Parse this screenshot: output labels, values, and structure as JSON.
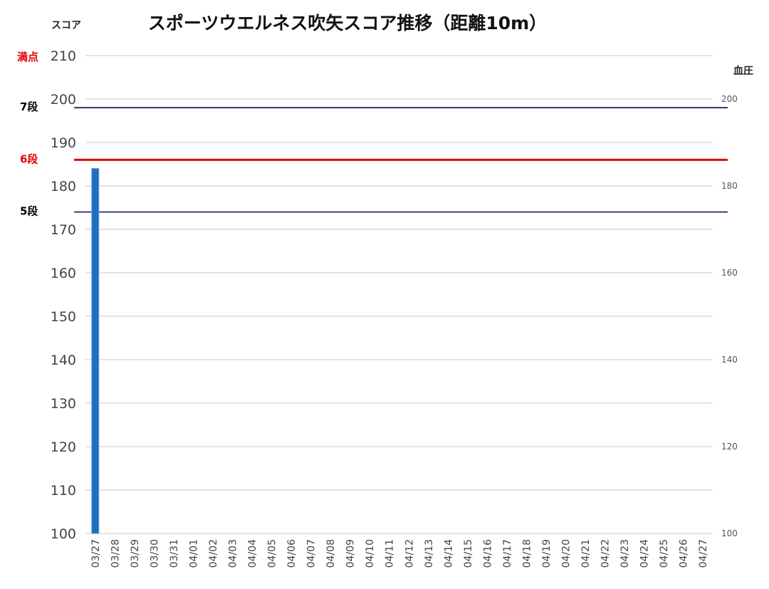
{
  "chart_data": {
    "type": "bar",
    "title": "スポーツウエルネス吹矢スコア推移（距離10m）",
    "ylabel": "スコア",
    "y2label": "血圧",
    "ylim": [
      100,
      210
    ],
    "y2lim": [
      100,
      210
    ],
    "yticks": [
      100,
      110,
      120,
      130,
      140,
      150,
      160,
      170,
      180,
      190,
      200,
      210
    ],
    "y2ticks": [
      100,
      120,
      140,
      160,
      180,
      200
    ],
    "categories": [
      "03/27",
      "03/28",
      "03/29",
      "03/30",
      "03/31",
      "04/01",
      "04/02",
      "04/03",
      "04/04",
      "04/05",
      "04/06",
      "04/07",
      "04/08",
      "04/09",
      "04/10",
      "04/11",
      "04/12",
      "04/13",
      "04/14",
      "04/15",
      "04/16",
      "04/17",
      "04/18",
      "04/19",
      "04/20",
      "04/21",
      "04/22",
      "04/23",
      "04/24",
      "04/25",
      "04/26",
      "04/27"
    ],
    "series": [
      {
        "values": [
          184,
          null,
          null,
          null,
          null,
          null,
          null,
          null,
          null,
          null,
          null,
          null,
          null,
          null,
          null,
          null,
          null,
          null,
          null,
          null,
          null,
          null,
          null,
          null,
          null,
          null,
          null,
          null,
          null,
          null,
          null,
          null
        ]
      }
    ],
    "reference_lines": [
      {
        "label": "満点",
        "value": 210,
        "color": "#e00000",
        "line": false
      },
      {
        "label": "7段",
        "value": 198,
        "color": "#000000",
        "line_color": "#1a2a6c"
      },
      {
        "label": "6段",
        "value": 186,
        "color": "#e00000",
        "line_color": "#e00000"
      },
      {
        "label": "5段",
        "value": 174,
        "color": "#000000",
        "line_color": "#1a2a6c"
      }
    ],
    "grid": true,
    "bar_color": "#1f6fc0"
  }
}
